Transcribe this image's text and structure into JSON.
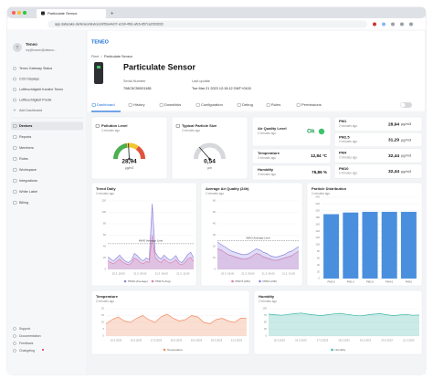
{
  "browser": {
    "tab_title": "Particulate Sensor",
    "url": "app.datacake.de/teneo/devices/d/f3ce4e07-e1b9-4fdc-afcb-857ca2303333"
  },
  "sidebar": {
    "workspace": "Teneo",
    "user": "my@name@dataco...",
    "dashboards": [
      "Teneo Gateway Status",
      "CO2 Displays",
      "Luftfeuchtigkeit Kantine Teneo",
      "Luftfeuchtigkeit Predix"
    ],
    "add_dashboard": "Add Dashboard",
    "menu": [
      "Devices",
      "Reports",
      "Members",
      "Rules",
      "Workspace",
      "Integrations",
      "White Label",
      "Billing"
    ],
    "footer": [
      "Support",
      "Documentation",
      "Feedback",
      "Changelog"
    ]
  },
  "header": {
    "logo": "TENEO",
    "breadcrumb": [
      "Fleet",
      "Particulate Sensor"
    ],
    "title": "Particulate Sensor",
    "serial_label": "Serial Number",
    "serial": "708C5C50001185",
    "update_label": "Last update",
    "update": "Tue Mar 21 2023 12:15:12 GMT+0100"
  },
  "tabs": [
    "Dashboard",
    "History",
    "Downlinks",
    "Configuration",
    "Debug",
    "Rules",
    "Permissions"
  ],
  "widgets": {
    "pollution": {
      "title": "Pollution Level",
      "time": "2 minutes ago",
      "value": 28.94,
      "value_label": "28,94",
      "unit": "µg/m3",
      "range": [
        0,
        60
      ]
    },
    "particle_size": {
      "title": "Typical Particle Size",
      "time": "2 minutes ago",
      "value": 0.54,
      "value_label": "0,54",
      "unit": "µm",
      "range": [
        0,
        2
      ]
    },
    "air_quality": {
      "title": "Air Quality Level",
      "time": "2 minutes ago",
      "value": "Ok"
    },
    "temperature": {
      "title": "Temperature",
      "time": "2 minutes ago",
      "value": 12.84,
      "value_label": "12,84 °C"
    },
    "humidity": {
      "title": "Humidity",
      "time": "2 minutes ago",
      "value": 76.86,
      "value_label": "76,86 %"
    },
    "pm": [
      {
        "title": "PM1",
        "time": "2 minutes ago",
        "value": 28.94,
        "value_label": "28,94",
        "unit": "µg/m3"
      },
      {
        "title": "PM2.5",
        "time": "2 minutes ago",
        "value": 31.29,
        "value_label": "31,29",
        "unit": "µg/m3"
      },
      {
        "title": "PM4",
        "time": "2 minutes ago",
        "value": 32.44,
        "value_label": "32,44",
        "unit": "µg/m3"
      },
      {
        "title": "PM10",
        "time": "2 minutes ago",
        "value": 32.44,
        "value_label": "32,44",
        "unit": "µg/m3"
      }
    ]
  },
  "charts": {
    "trend": {
      "type": "line",
      "title": "Trend Daily",
      "time": "2 minutes ago",
      "area": true,
      "ylim": [
        0,
        120
      ],
      "yticks": [
        0,
        20,
        40,
        60,
        80,
        100,
        120
      ],
      "xticks": [
        "20.3. 18:00",
        "21.3. 00:00",
        "21.3. 06:00",
        "21.3. 12:00"
      ],
      "limit": {
        "value": 45,
        "label": "WHO Average Limit"
      },
      "series": [
        {
          "name": "PM10 (Average)",
          "color": "#8f86e0",
          "values": [
            22,
            18,
            15,
            20,
            25,
            19,
            14,
            12,
            16,
            28,
            24,
            18,
            15,
            20,
            17,
            115,
            30,
            22,
            18,
            25,
            20,
            16,
            19,
            24,
            15,
            12,
            18,
            26,
            30,
            20
          ]
        },
        {
          "name": "PM2.5 (Avg)",
          "color": "#e07fb0",
          "values": [
            15,
            12,
            10,
            14,
            18,
            13,
            10,
            8,
            11,
            20,
            17,
            12,
            10,
            14,
            12,
            60,
            21,
            15,
            12,
            18,
            14,
            11,
            13,
            17,
            10,
            8,
            12,
            18,
            21,
            14
          ]
        }
      ]
    },
    "average": {
      "type": "line",
      "title": "Average Air Quality (24h)",
      "time": "2 minutes ago",
      "area": true,
      "ylim": [
        0,
        60
      ],
      "yticks": [
        0,
        10,
        20,
        30,
        40,
        50,
        60
      ],
      "xticks": [
        "20.3. 18:00",
        "21.3. 00:00",
        "21.3. 06:00",
        "21.3. 12:00"
      ],
      "limit": {
        "value": 25,
        "label": "WHO Average Limit"
      },
      "series": [
        {
          "name": "PM2.5 (24h)",
          "color": "#e07fb0",
          "values": [
            18,
            17,
            15,
            13,
            12,
            11,
            10,
            9,
            9,
            10,
            12,
            14,
            13,
            11,
            10,
            9,
            8,
            8,
            9,
            10,
            11,
            12,
            14,
            16
          ]
        },
        {
          "name": "PM10 (24h)",
          "color": "#8f86e0",
          "values": [
            24,
            22,
            20,
            18,
            16,
            15,
            14,
            13,
            13,
            14,
            16,
            18,
            17,
            15,
            14,
            12,
            11,
            11,
            12,
            13,
            15,
            16,
            18,
            20
          ]
        }
      ]
    },
    "distribution": {
      "type": "bar",
      "title": "Particle Distribution",
      "time": "2 minutes ago",
      "categories": [
        "PM0.5",
        "PM1.0",
        "PM2.5",
        "PM4.0",
        "PM10"
      ],
      "values": [
        190,
        195,
        197,
        197,
        197
      ],
      "color": "#4a8fdd",
      "ylim": [
        0,
        240
      ],
      "yticks": [
        0,
        20,
        40,
        60,
        80,
        100,
        120,
        140,
        160,
        180,
        200,
        220,
        240
      ]
    },
    "temperature": {
      "type": "line",
      "title": "Temperature",
      "time": "2 minutes ago",
      "area": true,
      "ylim": [
        0,
        20
      ],
      "yticks": [
        0,
        5,
        10,
        15,
        20
      ],
      "xticks": [
        "15.3.2023",
        "16.3.2023",
        "17.3.2023",
        "18.3.2023",
        "19.3.2023",
        "20.3.2023",
        "21.3.2023"
      ],
      "series": [
        {
          "name": "Temperature",
          "color": "#f08a5d",
          "values": [
            9,
            12,
            14,
            11,
            10,
            13,
            15,
            12,
            10,
            14,
            16,
            13,
            11,
            12,
            15,
            14,
            10,
            9,
            12,
            13,
            11,
            10,
            13,
            12.84
          ]
        }
      ]
    },
    "humidity": {
      "type": "line",
      "title": "Humidity",
      "time": "2 minutes ago",
      "area": true,
      "ylim": [
        0,
        100
      ],
      "yticks": [
        0,
        25,
        50,
        75,
        100
      ],
      "xticks": [
        "15.3.2023",
        "16.3.2023",
        "17.3.2023",
        "18.3.2023",
        "19.3.2023",
        "20.3.2023",
        "21.3.2023"
      ],
      "series": [
        {
          "name": "Humidity",
          "color": "#3fb8a8",
          "values": [
            80,
            78,
            76,
            79,
            82,
            84,
            80,
            77,
            75,
            78,
            81,
            83,
            79,
            76,
            74,
            77,
            80,
            82,
            78,
            75,
            77,
            79,
            76,
            76.86
          ]
        }
      ]
    }
  }
}
